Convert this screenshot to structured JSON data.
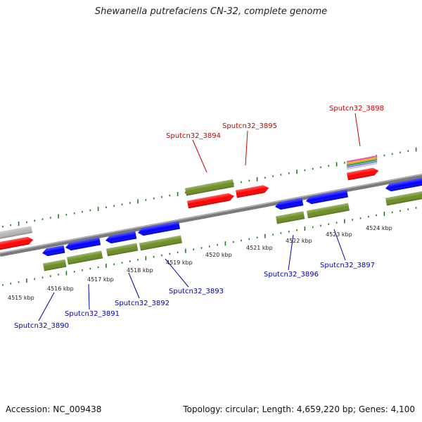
{
  "title": "Shewanella putrefaciens CN-32, complete genome",
  "footer": {
    "accession": "Accession: NC_009438",
    "topology": "Topology: circular; Length: 4,659,220 bp; Genes: 4,100"
  },
  "colors": {
    "forward_cds": "#ff0000",
    "reverse_cds": "#0000ff",
    "gene": "#6b8e23",
    "backbone": "#8a8a8a",
    "ticks": "#1f7a1f",
    "label_forward": "#cc0000",
    "label_reverse": "#0000aa"
  },
  "scale": {
    "ticks": [
      {
        "label": "4515 kbp"
      },
      {
        "label": "4516 kbp"
      },
      {
        "label": "4517 kbp"
      },
      {
        "label": "4518 kbp"
      },
      {
        "label": "4519 kbp"
      },
      {
        "label": "4520 kbp"
      },
      {
        "label": "4521 kbp"
      },
      {
        "label": "4522 kbp"
      },
      {
        "label": "4523 kbp"
      },
      {
        "label": "4524 kbp"
      }
    ]
  },
  "gene_labels": {
    "forward": [
      "Sputcn32_3894",
      "Sputcn32_3895",
      "Sputcn32_3898"
    ],
    "reverse": [
      "Sputcn32_3890",
      "Sputcn32_3891",
      "Sputcn32_3892",
      "Sputcn32_3893",
      "Sputcn32_3896",
      "Sputcn32_3897"
    ]
  }
}
